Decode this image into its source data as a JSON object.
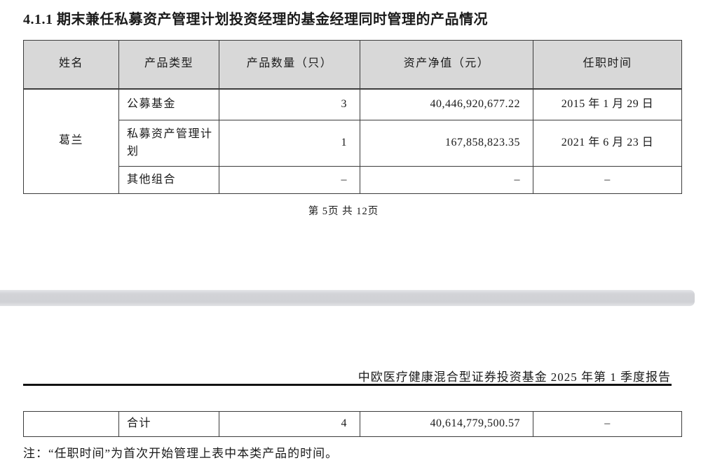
{
  "document": {
    "section_title": "4.1.1 期末兼任私募资产管理计划投资经理的基金经理同时管理的产品情况",
    "page_indicator": "第 5页 共 12页",
    "report_header": {
      "fund_name": "中欧医疗健康混合型证券投资基金",
      "suffix": "2025 年第 1 季度报告"
    },
    "note": "注：“任职时间”为首次开始管理上表中本类产品的时间。"
  },
  "products_table": {
    "headers": [
      "姓名",
      "产品类型",
      "产品数量（只）",
      "资产净值（元）",
      "任职时间"
    ],
    "manager_name": "葛兰",
    "rows": [
      {
        "product_type": "公募基金",
        "count": "3",
        "net_asset_value": "40,446,920,677.22",
        "tenure_date": "2015 年 1 月 29 日"
      },
      {
        "product_type": "私募资产管理计划",
        "count": "1",
        "net_asset_value": "167,858,823.35",
        "tenure_date": "2021 年 6 月 23 日"
      },
      {
        "product_type": "其他组合",
        "count": "–",
        "net_asset_value": "–",
        "tenure_date": "–"
      }
    ],
    "total_row": {
      "label": "合计",
      "count": "4",
      "net_asset_value": "40,614,779,500.57",
      "tenure_date": "–"
    }
  },
  "colors": {
    "table_header_bg": "#d8d8d8",
    "table_border": "#3c3c3c",
    "link_underline": "#35b6d6",
    "separator_band": "#d1d2d6",
    "rule": "#121212"
  }
}
